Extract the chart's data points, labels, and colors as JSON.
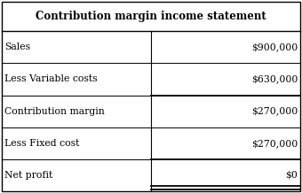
{
  "title": "Contribution margin income statement",
  "rows": [
    {
      "label": "Sales",
      "value": "$900,000",
      "underline_top": false,
      "double_underline_bot": false
    },
    {
      "label": "Less Variable costs",
      "value": "$630,000",
      "underline_top": false,
      "double_underline_bot": false
    },
    {
      "label": "Contribution margin",
      "value": "$270,000",
      "underline_top": true,
      "double_underline_bot": false
    },
    {
      "label": "Less Fixed cost",
      "value": "$270,000",
      "underline_top": false,
      "double_underline_bot": false
    },
    {
      "label": "Net profit",
      "value": "$0",
      "underline_top": true,
      "double_underline_bot": true
    }
  ],
  "col_split": 0.5,
  "bg_color": "#ffffff",
  "border_color": "#000000",
  "title_fontsize": 8.5,
  "row_fontsize": 7.8,
  "font_family": "serif",
  "fig_width": 3.4,
  "fig_height": 2.18,
  "dpi": 100
}
